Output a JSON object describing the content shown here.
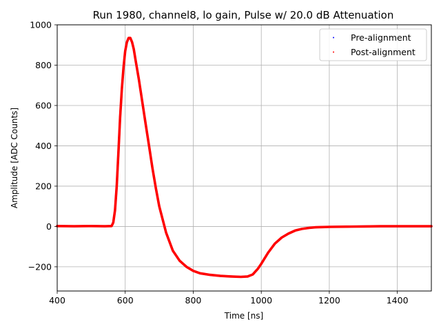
{
  "chart_data": {
    "type": "scatter",
    "title": "Run 1980, channel8, lo gain, Pulse w/ 20.0 dB Attenuation",
    "xlabel": "Time [ns]",
    "ylabel": "Amplitude [ADC Counts]",
    "xlim": [
      400,
      1500
    ],
    "ylim": [
      -320,
      1000
    ],
    "xticks": [
      400,
      600,
      800,
      1000,
      1200,
      1400
    ],
    "yticks": [
      -200,
      0,
      200,
      400,
      600,
      800,
      1000
    ],
    "grid": true,
    "legend_position": "upper-right",
    "series": [
      {
        "name": "Pre-alignment",
        "color": "#0000ff",
        "x": [
          400,
          450,
          500,
          540,
          560,
          565,
          570,
          575,
          580,
          585,
          590,
          595,
          600,
          605,
          610,
          615,
          620,
          625,
          630,
          640,
          650,
          660,
          670,
          680,
          690,
          700,
          720,
          740,
          760,
          780,
          800,
          820,
          850,
          880,
          910,
          940,
          960,
          975,
          990,
          1000,
          1020,
          1040,
          1060,
          1080,
          1100,
          1120,
          1140,
          1160,
          1180,
          1200,
          1250,
          1300,
          1350,
          1400,
          1450,
          1500
        ],
        "y": [
          2,
          1,
          2,
          1,
          2,
          20,
          80,
          200,
          370,
          540,
          680,
          790,
          870,
          915,
          935,
          935,
          915,
          880,
          830,
          730,
          620,
          510,
          400,
          290,
          190,
          100,
          -30,
          -120,
          -170,
          -200,
          -220,
          -232,
          -240,
          -245,
          -248,
          -250,
          -248,
          -238,
          -210,
          -185,
          -130,
          -85,
          -55,
          -35,
          -20,
          -12,
          -7,
          -4,
          -3,
          -2,
          -1,
          0,
          1,
          1,
          1,
          1
        ]
      },
      {
        "name": "Post-alignment",
        "color": "#ff0000",
        "x": [
          400,
          450,
          500,
          540,
          560,
          565,
          570,
          575,
          580,
          585,
          590,
          595,
          600,
          605,
          610,
          615,
          620,
          625,
          630,
          640,
          650,
          660,
          670,
          680,
          690,
          700,
          720,
          740,
          760,
          780,
          800,
          820,
          850,
          880,
          910,
          940,
          960,
          975,
          990,
          1000,
          1020,
          1040,
          1060,
          1080,
          1100,
          1120,
          1140,
          1160,
          1180,
          1200,
          1250,
          1300,
          1350,
          1400,
          1450,
          1500
        ],
        "y": [
          2,
          1,
          2,
          1,
          2,
          20,
          80,
          200,
          370,
          540,
          680,
          790,
          870,
          915,
          935,
          935,
          915,
          880,
          830,
          730,
          620,
          510,
          400,
          290,
          190,
          100,
          -30,
          -120,
          -170,
          -200,
          -220,
          -232,
          -240,
          -245,
          -248,
          -250,
          -248,
          -238,
          -210,
          -185,
          -130,
          -85,
          -55,
          -35,
          -20,
          -12,
          -7,
          -4,
          -3,
          -2,
          -1,
          0,
          1,
          1,
          1,
          1
        ]
      }
    ]
  }
}
